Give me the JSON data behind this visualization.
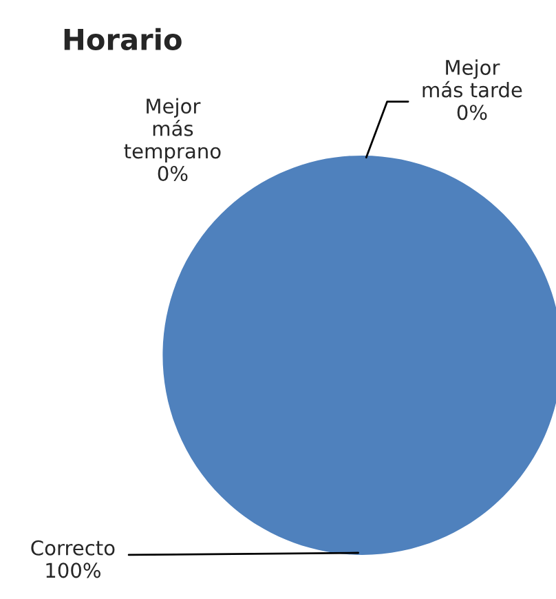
{
  "chart_data": {
    "type": "pie",
    "title": "Horario",
    "categories": [
      "Mejor\nmás\ntemprano",
      "Mejor\nmás tarde",
      "Correcto"
    ],
    "values": [
      0,
      0,
      100
    ],
    "colors": [
      "#c0504d",
      "#9bbb59",
      "#4f81bd"
    ],
    "value_labels": [
      "0%",
      "0%",
      "100%"
    ]
  }
}
